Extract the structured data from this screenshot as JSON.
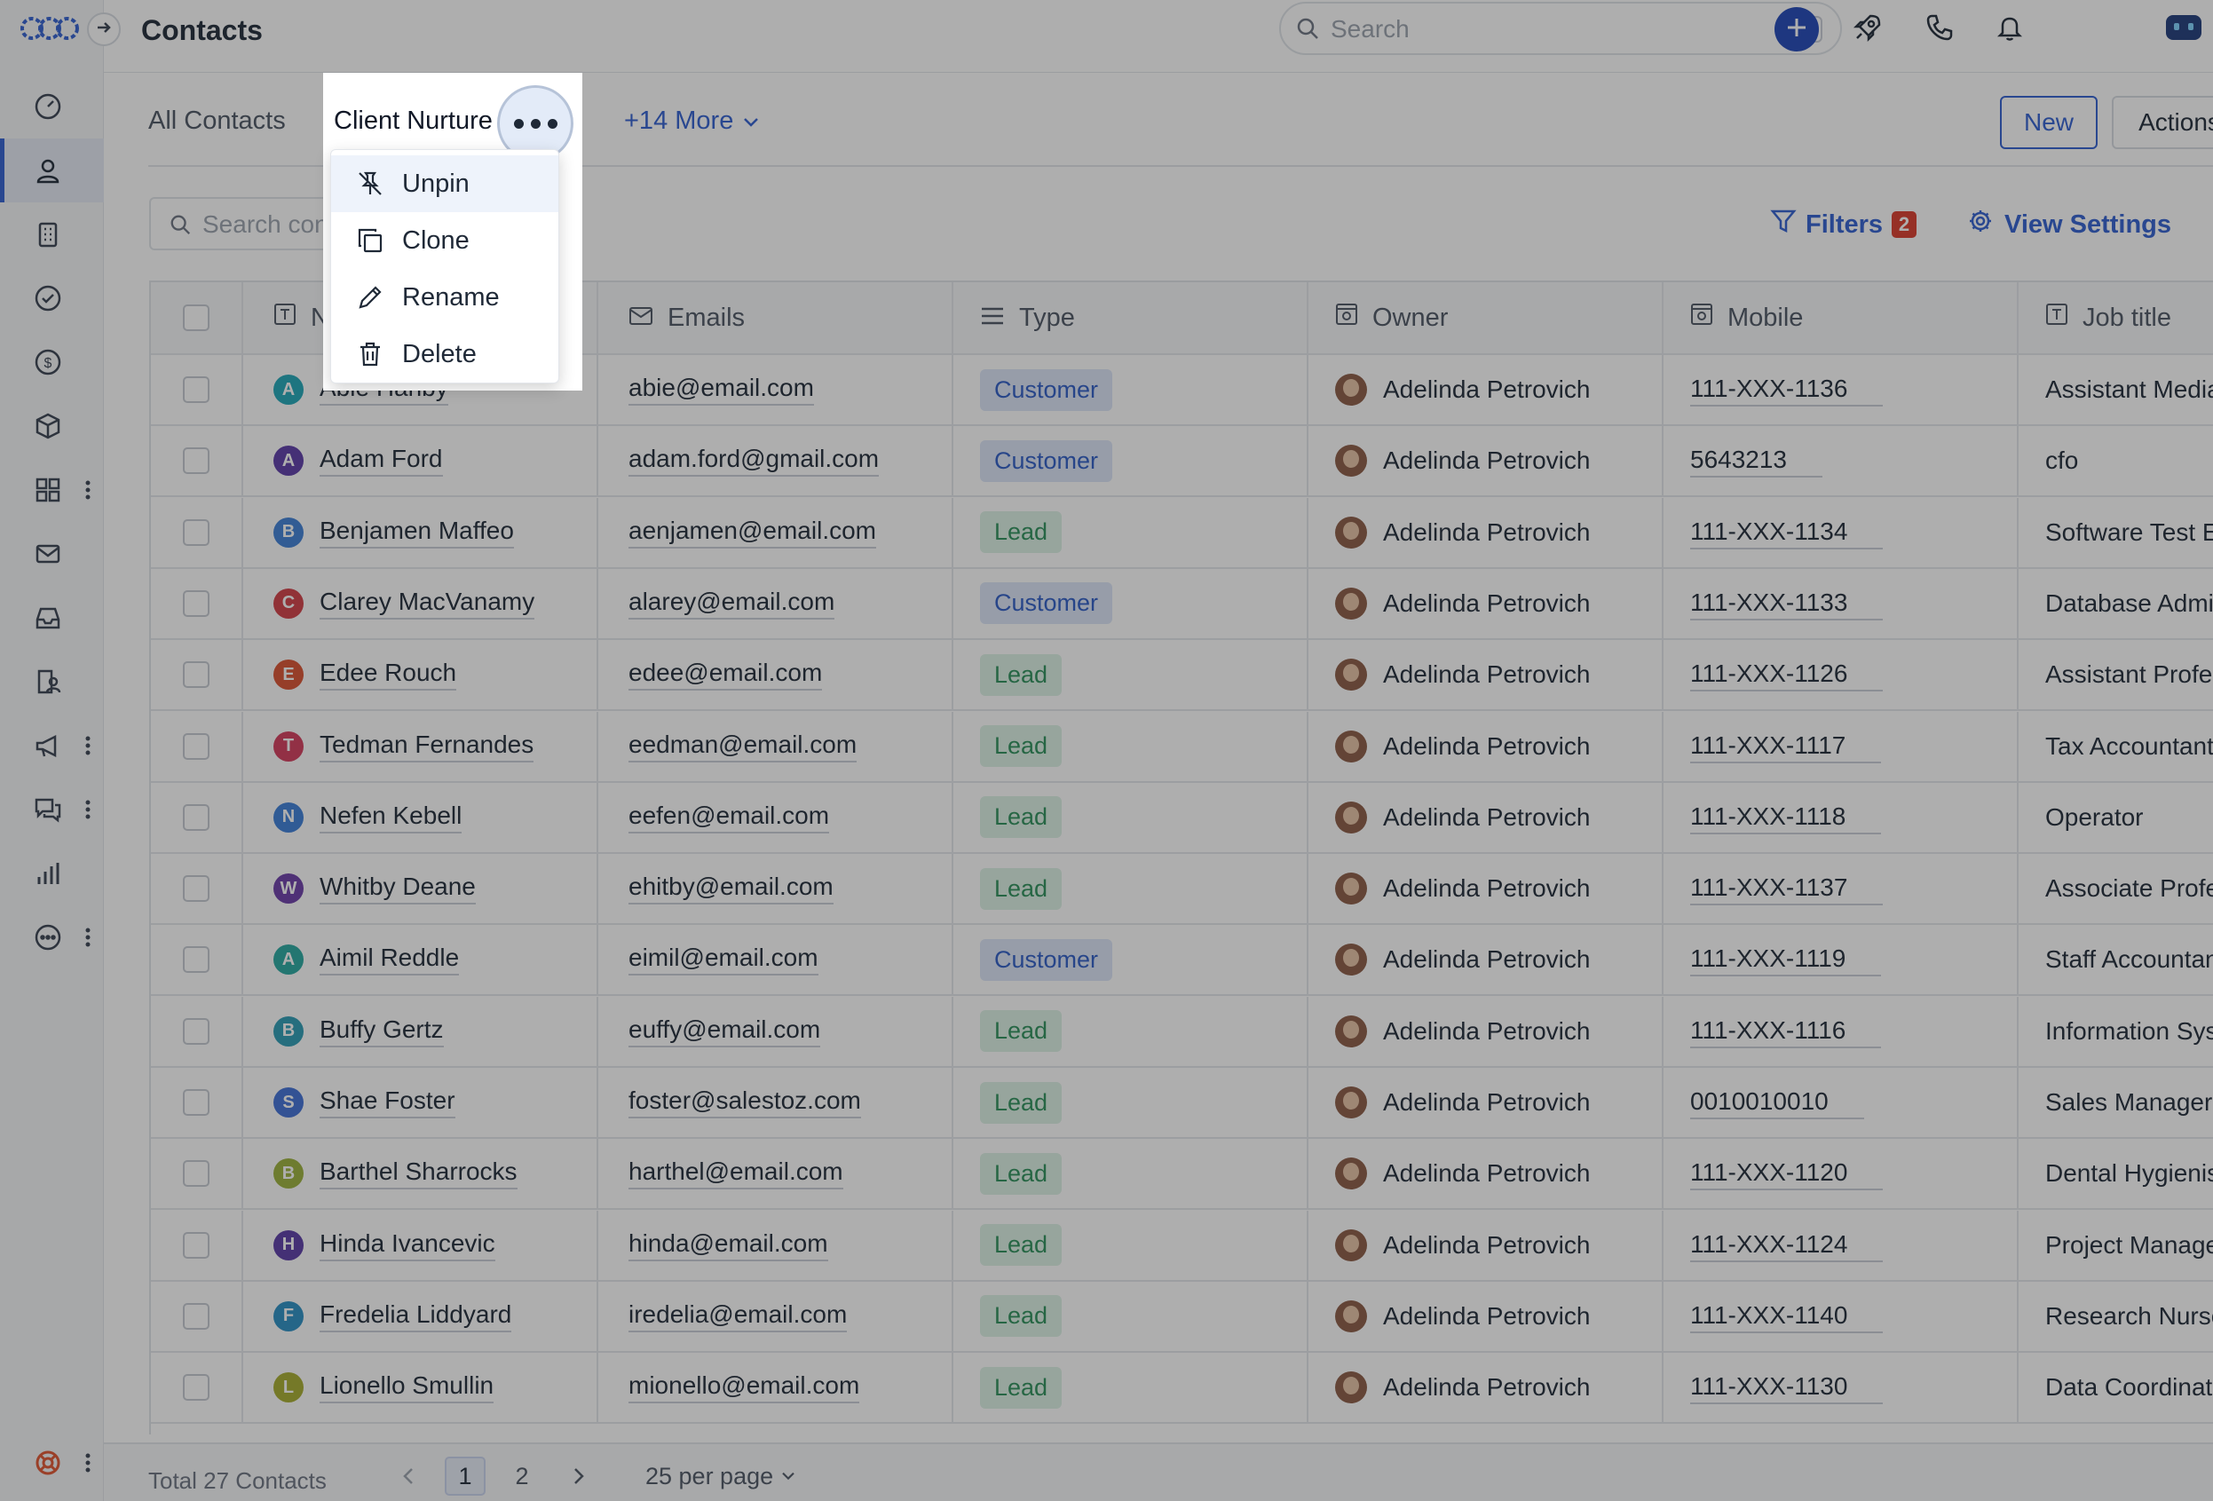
{
  "app": {
    "title": "Contacts"
  },
  "search": {
    "placeholder": "Search",
    "shortcut": "/"
  },
  "views": {
    "tabs": [
      {
        "label": "All Contacts"
      },
      {
        "label": "Client Nurture"
      }
    ],
    "more_label": "+14 More",
    "new_label": "New",
    "actions_label": "Actions"
  },
  "toolbar": {
    "search_placeholder": "Search contacts",
    "filters_label": "Filters",
    "filters_count": "2",
    "view_settings_label": "View Settings"
  },
  "view_menu": {
    "items": [
      {
        "label": "Unpin",
        "icon": "unpin-icon"
      },
      {
        "label": "Clone",
        "icon": "clone-icon"
      },
      {
        "label": "Rename",
        "icon": "pencil-icon"
      },
      {
        "label": "Delete",
        "icon": "trash-icon"
      }
    ]
  },
  "table": {
    "columns": [
      {
        "label": "Name",
        "icon": "text-field-icon"
      },
      {
        "label": "Emails",
        "icon": "envelope-icon"
      },
      {
        "label": "Type",
        "icon": "list-icon"
      },
      {
        "label": "Owner",
        "icon": "user-lookup-icon"
      },
      {
        "label": "Mobile",
        "icon": "user-lookup-icon"
      },
      {
        "label": "Job title",
        "icon": "text-field-icon"
      }
    ],
    "rows": [
      {
        "initial": "A",
        "color": "#1fa6b8",
        "name": "Abie Hanby",
        "email": "abie@email.com",
        "type": "Customer",
        "owner": "Adelinda Petrovich",
        "mobile": "111-XXX-1136",
        "job": "Assistant Media Planner"
      },
      {
        "initial": "A",
        "color": "#5b3aa8",
        "name": "Adam Ford",
        "email": "adam.ford@gmail.com",
        "type": "Customer",
        "owner": "Adelinda Petrovich",
        "mobile": "5643213",
        "job": "cfo"
      },
      {
        "initial": "B",
        "color": "#3e7fd6",
        "name": "Benjamen Maffeo",
        "email": "aenjamen@email.com",
        "type": "Lead",
        "owner": "Adelinda Petrovich",
        "mobile": "111-XXX-1134",
        "job": "Software Test Engineer"
      },
      {
        "initial": "C",
        "color": "#d23d46",
        "name": "Clarey MacVanamy",
        "email": "alarey@email.com",
        "type": "Customer",
        "owner": "Adelinda Petrovich",
        "mobile": "111-XXX-1133",
        "job": "Database Administrator"
      },
      {
        "initial": "E",
        "color": "#d9502f",
        "name": "Edee Rouch",
        "email": "edee@email.com",
        "type": "Lead",
        "owner": "Adelinda Petrovich",
        "mobile": "111-XXX-1126",
        "job": "Assistant Professor"
      },
      {
        "initial": "T",
        "color": "#d33a5c",
        "name": "Tedman Fernandes",
        "email": "eedman@email.com",
        "type": "Lead",
        "owner": "Adelinda Petrovich",
        "mobile": "111-XXX-1117",
        "job": "Tax Accountant"
      },
      {
        "initial": "N",
        "color": "#3b7ed8",
        "name": "Nefen Kebell",
        "email": "eefen@email.com",
        "type": "Lead",
        "owner": "Adelinda Petrovich",
        "mobile": "111-XXX-1118",
        "job": "Operator"
      },
      {
        "initial": "W",
        "color": "#6b3ca8",
        "name": "Whitby Deane",
        "email": "ehitby@email.com",
        "type": "Lead",
        "owner": "Adelinda Petrovich",
        "mobile": "111-XXX-1137",
        "job": "Associate Professor"
      },
      {
        "initial": "A",
        "color": "#27a8a0",
        "name": "Aimil Reddle",
        "email": "eimil@email.com",
        "type": "Customer",
        "owner": "Adelinda Petrovich",
        "mobile": "111-XXX-1119",
        "job": "Staff Accountant"
      },
      {
        "initial": "B",
        "color": "#2b9cb4",
        "name": "Buffy Gertz",
        "email": "euffy@email.com",
        "type": "Lead",
        "owner": "Adelinda Petrovich",
        "mobile": "111-XXX-1116",
        "job": "Information Systems Manager"
      },
      {
        "initial": "S",
        "color": "#3f6fd6",
        "name": "Shae Foster",
        "email": "foster@salestoz.com",
        "type": "Lead",
        "owner": "Adelinda Petrovich",
        "mobile": "0010010010",
        "job": "Sales Manager"
      },
      {
        "initial": "B",
        "color": "#9bb13a",
        "name": "Barthel Sharrocks",
        "email": "harthel@email.com",
        "type": "Lead",
        "owner": "Adelinda Petrovich",
        "mobile": "111-XXX-1120",
        "job": "Dental Hygienist"
      },
      {
        "initial": "H",
        "color": "#5a3aa6",
        "name": "Hinda Ivancevic",
        "email": "hinda@email.com",
        "type": "Lead",
        "owner": "Adelinda Petrovich",
        "mobile": "111-XXX-1124",
        "job": "Project Manager"
      },
      {
        "initial": "F",
        "color": "#2a8fc4",
        "name": "Fredelia Liddyard",
        "email": "iredelia@email.com",
        "type": "Lead",
        "owner": "Adelinda Petrovich",
        "mobile": "111-XXX-1140",
        "job": "Research Nurse"
      },
      {
        "initial": "L",
        "color": "#a7ad2e",
        "name": "Lionello Smullin",
        "email": "mionello@email.com",
        "type": "Lead",
        "owner": "Adelinda Petrovich",
        "mobile": "111-XXX-1130",
        "job": "Data Coordinator"
      }
    ]
  },
  "footer": {
    "total": "Total 27 Contacts",
    "pages": [
      "1",
      "2"
    ],
    "current_page": "1",
    "per_page": "25 per page"
  },
  "colors": {
    "accent": "#2f5fd0",
    "customer_bg": "#dbe5f8",
    "lead_bg": "#dcf1e5",
    "badge": "#d93b2b"
  }
}
